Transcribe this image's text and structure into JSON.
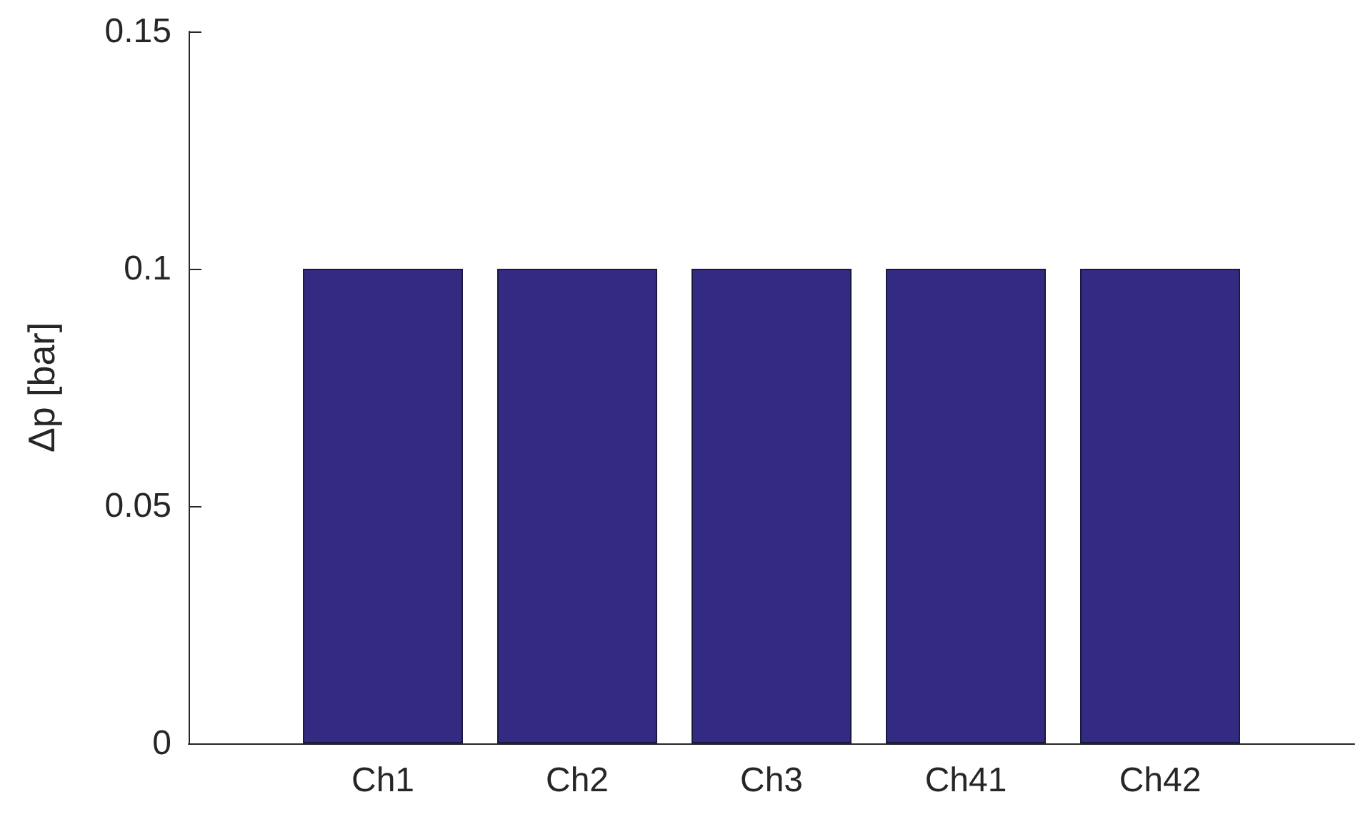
{
  "chart_data": {
    "type": "bar",
    "ylabel": "Δp [bar]",
    "categories": [
      "Ch1",
      "Ch2",
      "Ch3",
      "Ch41",
      "Ch42"
    ],
    "values": [
      0.1,
      0.1,
      0.1,
      0.1,
      0.1
    ],
    "color": "#332a82",
    "ylim": [
      0,
      0.15
    ],
    "yticks": [
      0,
      0.05,
      0.1,
      0.15
    ]
  }
}
